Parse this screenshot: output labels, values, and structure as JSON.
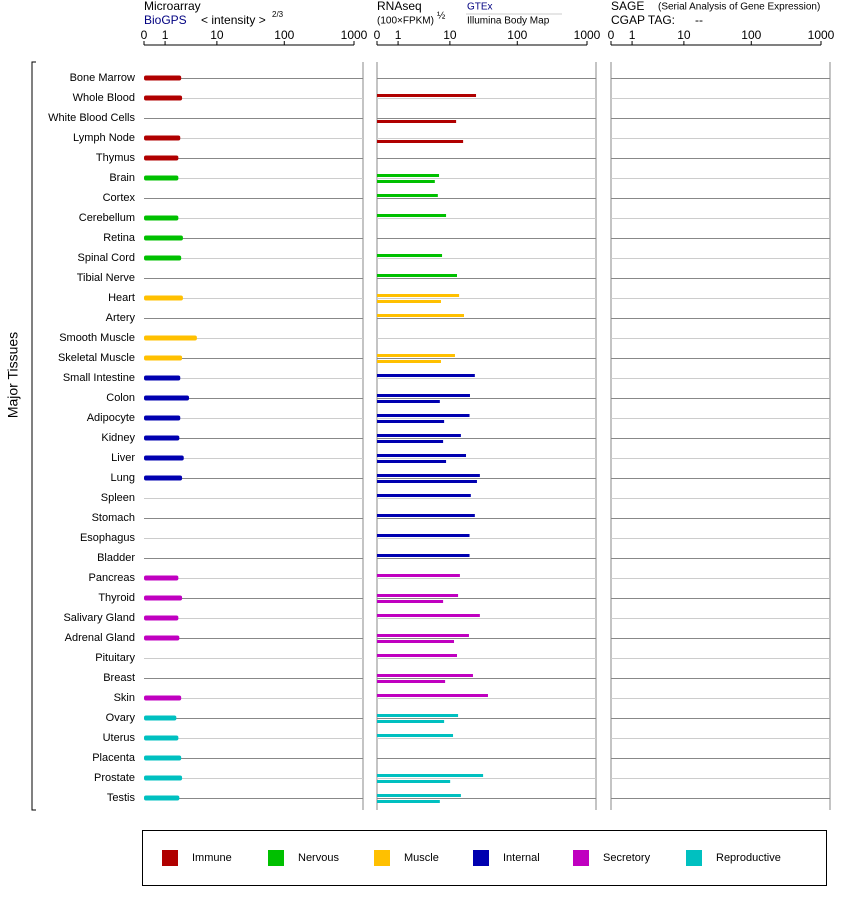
{
  "chart_data": {
    "type": "bar",
    "axis_label": "Major Tissues",
    "panels": {
      "microarray": {
        "title": "Microarray",
        "source": "BioGPS",
        "scale_label": "< intensity >",
        "exponent": "2/3",
        "xlim": [
          0,
          1000
        ],
        "xticks": [
          0,
          1,
          10,
          100,
          1000
        ]
      },
      "rnaseq": {
        "title": "RNAseq",
        "scale_label": "(100×FPKM)",
        "exponent": "½",
        "source_1": "GTEx",
        "source_2": "Illumina Body Map",
        "xlim": [
          0,
          1000
        ],
        "xticks": [
          0,
          1,
          10,
          100,
          1000
        ]
      },
      "sage": {
        "title": "SAGE",
        "subtitle": "(Serial Analysis of Gene Expression)",
        "tag_label": "CGAP TAG:",
        "tag": "--",
        "xlim": [
          0,
          1000
        ],
        "xticks": [
          0,
          1,
          10,
          100,
          1000
        ]
      }
    },
    "groups": [
      {
        "name": "Immune",
        "color": "#b00000"
      },
      {
        "name": "Nervous",
        "color": "#00c000"
      },
      {
        "name": "Muscle",
        "color": "#ffc000"
      },
      {
        "name": "Internal",
        "color": "#0000b0"
      },
      {
        "name": "Secretory",
        "color": "#c000c0"
      },
      {
        "name": "Reproductive",
        "color": "#00c0c0"
      }
    ],
    "tissues": [
      {
        "name": "Bone Marrow",
        "group": "Immune",
        "microarray": 2.4,
        "gtex": null,
        "illumina": null
      },
      {
        "name": "Whole Blood",
        "group": "Immune",
        "microarray": 2.5,
        "gtex": 25,
        "illumina": null
      },
      {
        "name": "White Blood Cells",
        "group": "Immune",
        "microarray": null,
        "gtex": null,
        "illumina": 12.5
      },
      {
        "name": "Lymph Node",
        "group": "Immune",
        "microarray": 2.3,
        "gtex": null,
        "illumina": 16
      },
      {
        "name": "Thymus",
        "group": "Immune",
        "microarray": 2.1,
        "gtex": null,
        "illumina": null
      },
      {
        "name": "Brain",
        "group": "Nervous",
        "microarray": 2.1,
        "gtex": 6.7,
        "illumina": 5.7
      },
      {
        "name": "Cortex",
        "group": "Nervous",
        "microarray": null,
        "gtex": 6.4,
        "illumina": null
      },
      {
        "name": "Cerebellum",
        "group": "Nervous",
        "microarray": 2.1,
        "gtex": 8.7,
        "illumina": null
      },
      {
        "name": "Retina",
        "group": "Nervous",
        "microarray": 2.6,
        "gtex": null,
        "illumina": null
      },
      {
        "name": "Spinal Cord",
        "group": "Nervous",
        "microarray": 2.4,
        "gtex": 7.5,
        "illumina": null
      },
      {
        "name": "Tibial Nerve",
        "group": "Nervous",
        "microarray": null,
        "gtex": 12.9,
        "illumina": null
      },
      {
        "name": "Heart",
        "group": "Muscle",
        "microarray": 2.6,
        "gtex": 13.9,
        "illumina": 7.2
      },
      {
        "name": "Artery",
        "group": "Muscle",
        "microarray": null,
        "gtex": 16.5,
        "illumina": null
      },
      {
        "name": "Smooth Muscle",
        "group": "Muscle",
        "microarray": 4.7,
        "gtex": null,
        "illumina": null
      },
      {
        "name": "Skeletal Muscle",
        "group": "Muscle",
        "microarray": 2.5,
        "gtex": 12,
        "illumina": 7.2
      },
      {
        "name": "Small Intestine",
        "group": "Internal",
        "microarray": 2.3,
        "gtex": 24,
        "illumina": null
      },
      {
        "name": "Colon",
        "group": "Internal",
        "microarray": 3.4,
        "gtex": 20.3,
        "illumina": 6.9
      },
      {
        "name": "Adipocyte",
        "group": "Internal",
        "microarray": 2.3,
        "gtex": 20,
        "illumina": 8.1
      },
      {
        "name": "Kidney",
        "group": "Internal",
        "microarray": 2.2,
        "gtex": 14.8,
        "illumina": 7.8
      },
      {
        "name": "Liver",
        "group": "Internal",
        "microarray": 2.7,
        "gtex": 17.7,
        "illumina": 8.7
      },
      {
        "name": "Lung",
        "group": "Internal",
        "microarray": 2.5,
        "gtex": 28.5,
        "illumina": 25.8
      },
      {
        "name": "Spleen",
        "group": "Internal",
        "microarray": null,
        "gtex": 20.9,
        "illumina": null
      },
      {
        "name": "Stomach",
        "group": "Internal",
        "microarray": null,
        "gtex": 24,
        "illumina": null
      },
      {
        "name": "Esophagus",
        "group": "Internal",
        "microarray": null,
        "gtex": 20,
        "illumina": null
      },
      {
        "name": "Bladder",
        "group": "Internal",
        "microarray": null,
        "gtex": 20,
        "illumina": null
      },
      {
        "name": "Pancreas",
        "group": "Secretory",
        "microarray": 2.1,
        "gtex": 14.3,
        "illumina": null
      },
      {
        "name": "Thyroid",
        "group": "Secretory",
        "microarray": 2.5,
        "gtex": 13.4,
        "illumina": 7.8
      },
      {
        "name": "Salivary Gland",
        "group": "Secretory",
        "microarray": 2.1,
        "gtex": 28.5,
        "illumina": null
      },
      {
        "name": "Adrenal Gland",
        "group": "Secretory",
        "microarray": 2.2,
        "gtex": 19.6,
        "illumina": 11.6
      },
      {
        "name": "Pituitary",
        "group": "Secretory",
        "microarray": null,
        "gtex": 12.9,
        "illumina": null
      },
      {
        "name": "Breast",
        "group": "Secretory",
        "microarray": null,
        "gtex": 22.5,
        "illumina": 8.4
      },
      {
        "name": "Skin",
        "group": "Secretory",
        "microarray": 2.4,
        "gtex": 37.5,
        "illumina": null
      },
      {
        "name": "Ovary",
        "group": "Reproductive",
        "microarray": 1.9,
        "gtex": 13.4,
        "illumina": 8.1
      },
      {
        "name": "Uterus",
        "group": "Reproductive",
        "microarray": 2.1,
        "gtex": 11.2,
        "illumina": null
      },
      {
        "name": "Placenta",
        "group": "Reproductive",
        "microarray": 2.4,
        "gtex": null,
        "illumina": null
      },
      {
        "name": "Prostate",
        "group": "Reproductive",
        "microarray": 2.5,
        "gtex": 31.8,
        "illumina": 10.1
      },
      {
        "name": "Testis",
        "group": "Reproductive",
        "microarray": 2.2,
        "gtex": 14.8,
        "illumina": 6.9
      }
    ]
  }
}
